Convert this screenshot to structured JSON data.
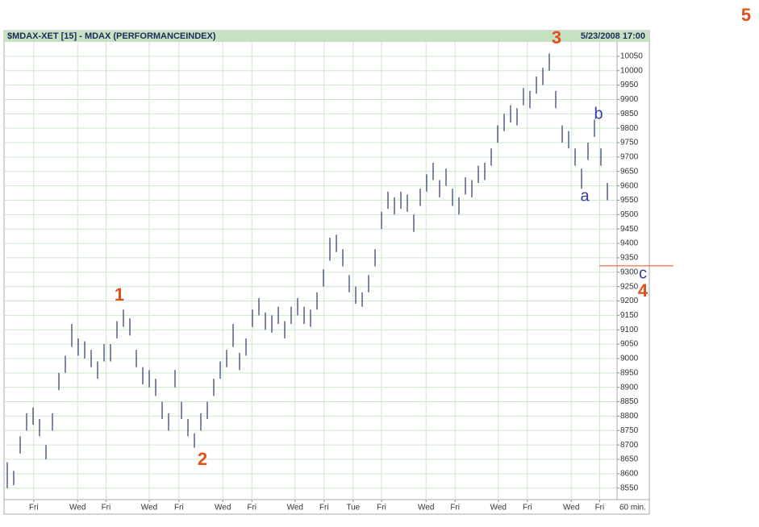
{
  "chart_data": {
    "type": "ohlc",
    "title": "$MDAX-XET [15] - MDAX (PERFORMANCEINDEX)",
    "subtitle": "5/23/2008 17:00",
    "x_label": "60 min.",
    "color": "#2b3a66",
    "grid": true,
    "xlim": [
      -0.5,
      94.5
    ],
    "ylim": [
      8510,
      10100
    ],
    "yticks": [
      8550,
      8600,
      8650,
      8700,
      8750,
      8800,
      8850,
      8900,
      8950,
      9000,
      9050,
      9100,
      9150,
      9200,
      9250,
      9300,
      9350,
      9400,
      9450,
      9500,
      9550,
      9600,
      9650,
      9700,
      9750,
      9800,
      9850,
      9900,
      9950,
      10000,
      10050
    ],
    "xticks": [
      {
        "value": 4.1,
        "label": "Fri"
      },
      {
        "value": 10.9,
        "label": "Wed"
      },
      {
        "value": 15.3,
        "label": "Fri"
      },
      {
        "value": 22,
        "label": "Wed"
      },
      {
        "value": 26.6,
        "label": "Fri"
      },
      {
        "value": 33.4,
        "label": "Wed"
      },
      {
        "value": 37.9,
        "label": "Fri"
      },
      {
        "value": 44.6,
        "label": "Wed"
      },
      {
        "value": 49.1,
        "label": "Fri"
      },
      {
        "value": 53.6,
        "label": "Tue"
      },
      {
        "value": 58,
        "label": "Fri"
      },
      {
        "value": 64.9,
        "label": "Wed"
      },
      {
        "value": 69.4,
        "label": "Fri"
      },
      {
        "value": 76.1,
        "label": "Wed"
      },
      {
        "value": 80.6,
        "label": "Fri"
      },
      {
        "value": 87.4,
        "label": "Wed"
      },
      {
        "value": 91.8,
        "label": "Fri"
      }
    ],
    "high": [
      8640,
      8610,
      8730,
      8810,
      8830,
      8790,
      8700,
      8810,
      8950,
      9010,
      9120,
      9070,
      9060,
      9030,
      8990,
      9050,
      9050,
      9130,
      9170,
      9140,
      9030,
      8970,
      8960,
      8930,
      8850,
      8810,
      8960,
      8850,
      8790,
      8740,
      8810,
      8850,
      8930,
      8990,
      9030,
      9120,
      9020,
      9070,
      9170,
      9210,
      9160,
      9150,
      9180,
      9130,
      9180,
      9210,
      9180,
      9170,
      9230,
      9310,
      9420,
      9430,
      9380,
      9290,
      9250,
      9230,
      9290,
      9380,
      9510,
      9580,
      9560,
      9580,
      9570,
      9500,
      9590,
      9640,
      9680,
      9620,
      9660,
      9590,
      9560,
      9630,
      9620,
      9670,
      9680,
      9730,
      9810,
      9850,
      9880,
      9870,
      9940,
      9930,
      9980,
      10010,
      10060,
      9930,
      9810,
      9790,
      9730,
      9660,
      9750,
      9830,
      9730,
      9610
    ],
    "low": [
      8550,
      8560,
      8670,
      8750,
      8770,
      8730,
      8650,
      8750,
      8890,
      8950,
      9040,
      9010,
      9000,
      8970,
      8930,
      8990,
      8990,
      9070,
      9110,
      9080,
      8970,
      8910,
      8900,
      8870,
      8790,
      8750,
      8900,
      8790,
      8730,
      8690,
      8750,
      8790,
      8870,
      8930,
      8970,
      9040,
      8960,
      9010,
      9110,
      9150,
      9100,
      9090,
      9120,
      9070,
      9120,
      9150,
      9120,
      9110,
      9170,
      9250,
      9340,
      9370,
      9320,
      9230,
      9190,
      9180,
      9230,
      9320,
      9450,
      9520,
      9500,
      9520,
      9510,
      9440,
      9530,
      9580,
      9620,
      9560,
      9600,
      9530,
      9500,
      9570,
      9560,
      9610,
      9620,
      9670,
      9750,
      9790,
      9820,
      9810,
      9880,
      9870,
      9920,
      9950,
      10000,
      9870,
      9750,
      9730,
      9670,
      9590,
      9690,
      9770,
      9670,
      9550
    ],
    "annotations": [
      "1",
      "2",
      "3",
      "4",
      "5",
      "a",
      "b",
      "c"
    ],
    "level_line": 9322
  }
}
